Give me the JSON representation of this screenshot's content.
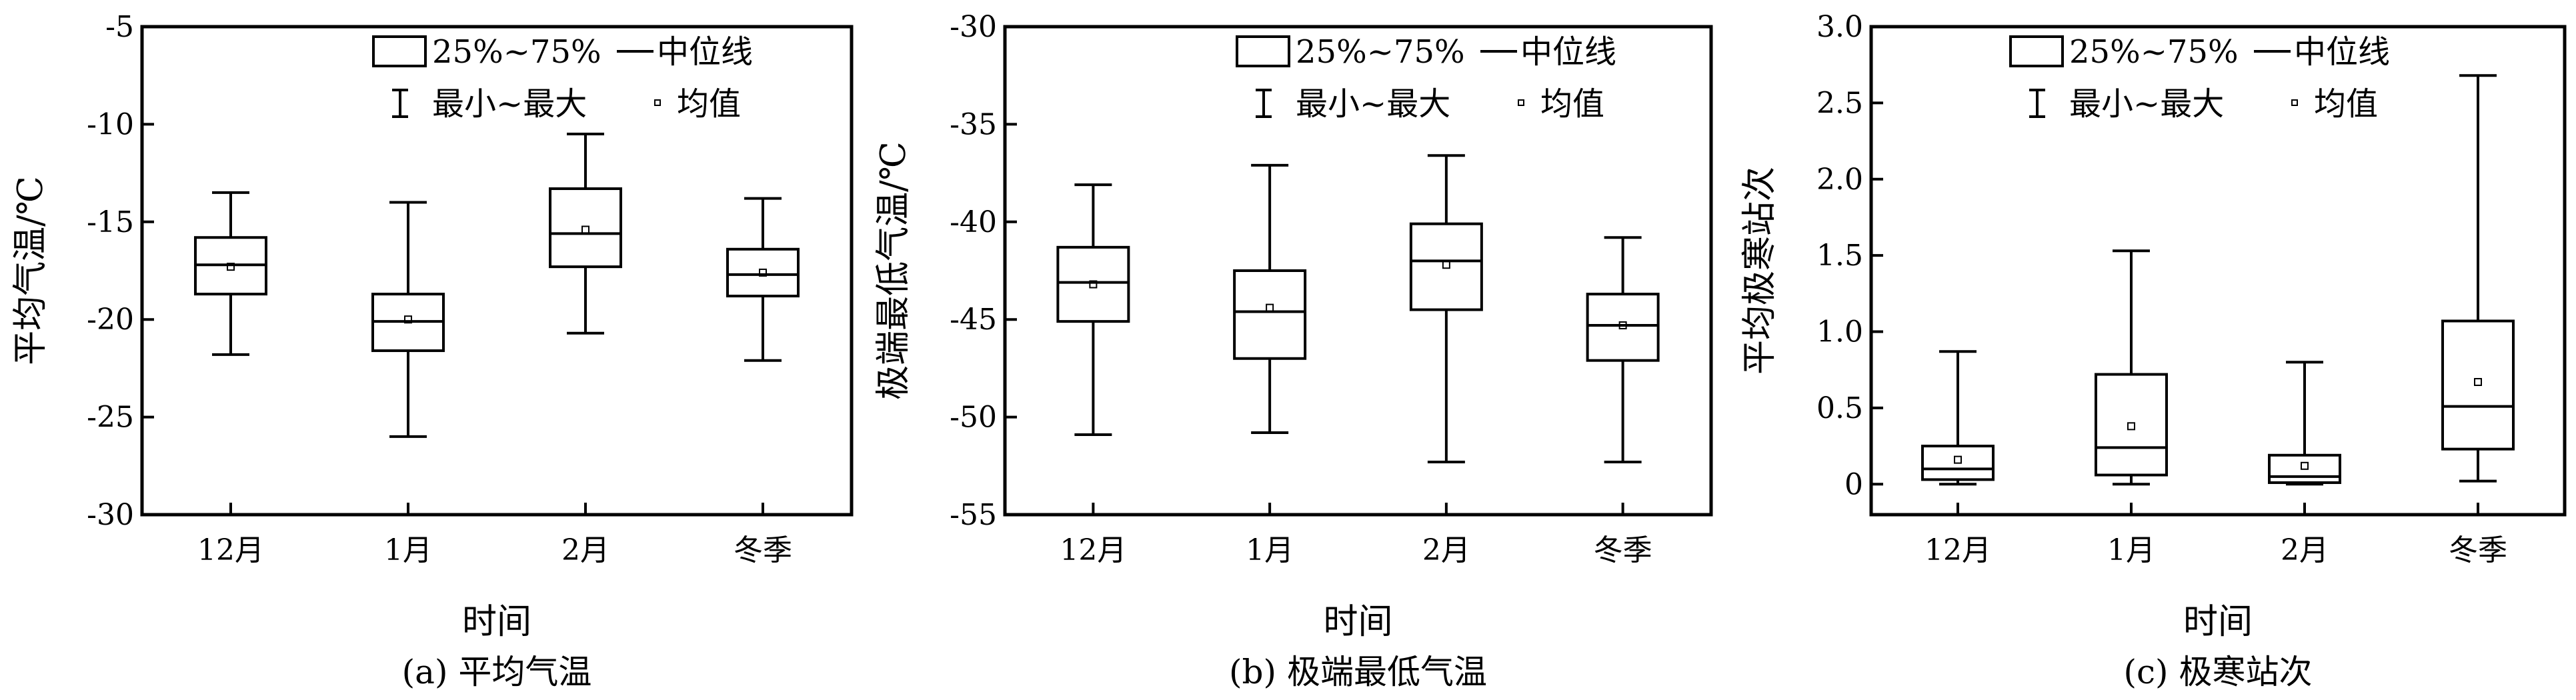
{
  "legend": {
    "box_label": "25%~75%",
    "median_label": "中位线",
    "whisker_label": "最小~最大",
    "mean_label": "均值"
  },
  "chart_data": [
    {
      "type": "box",
      "caption": "(a) 平均气温",
      "xlabel": "时间",
      "ylabel": "平均气温/℃",
      "categories": [
        "12月",
        "1月",
        "2月",
        "冬季"
      ],
      "ylim": [
        -30,
        -5
      ],
      "yticks": [
        -5,
        -10,
        -15,
        -20,
        -25,
        -30
      ],
      "ytick_labels": [
        "-5",
        "-10",
        "-15",
        "-20",
        "-25",
        "-30"
      ],
      "boxes": [
        {
          "min": -21.8,
          "q1": -18.7,
          "median": -17.2,
          "q3": -15.8,
          "max": -13.5,
          "mean": -17.3
        },
        {
          "min": -26.0,
          "q1": -21.6,
          "median": -20.1,
          "q3": -18.7,
          "max": -14.0,
          "mean": -20.0
        },
        {
          "min": -20.7,
          "q1": -17.3,
          "median": -15.6,
          "q3": -13.3,
          "max": -10.5,
          "mean": -15.4
        },
        {
          "min": -22.1,
          "q1": -18.8,
          "median": -17.7,
          "q3": -16.4,
          "max": -13.8,
          "mean": -17.6
        }
      ]
    },
    {
      "type": "box",
      "caption": "(b) 极端最低气温",
      "xlabel": "时间",
      "ylabel": "极端最低气温/℃",
      "categories": [
        "12月",
        "1月",
        "2月",
        "冬季"
      ],
      "ylim": [
        -55,
        -30
      ],
      "yticks": [
        -30,
        -35,
        -40,
        -45,
        -50,
        -55
      ],
      "ytick_labels": [
        "-30",
        "-35",
        "-40",
        "-45",
        "-50",
        "-55"
      ],
      "boxes": [
        {
          "min": -50.9,
          "q1": -45.1,
          "median": -43.1,
          "q3": -41.3,
          "max": -38.1,
          "mean": -43.2
        },
        {
          "min": -50.8,
          "q1": -47.0,
          "median": -44.6,
          "q3": -42.5,
          "max": -37.1,
          "mean": -44.4
        },
        {
          "min": -52.3,
          "q1": -44.5,
          "median": -42.0,
          "q3": -40.1,
          "max": -36.6,
          "mean": -42.2
        },
        {
          "min": -52.3,
          "q1": -47.1,
          "median": -45.3,
          "q3": -43.7,
          "max": -40.8,
          "mean": -45.3
        }
      ]
    },
    {
      "type": "box",
      "caption": "(c) 极寒站次",
      "xlabel": "时间",
      "ylabel": "平均极寒站次",
      "categories": [
        "12月",
        "1月",
        "2月",
        "冬季"
      ],
      "ylim": [
        -0.2,
        3.0
      ],
      "yticks": [
        0,
        0.5,
        1.0,
        1.5,
        2.0,
        2.5,
        3.0
      ],
      "ytick_labels": [
        "0",
        "0.5",
        "1.0",
        "1.5",
        "2.0",
        "2.5",
        "3.0"
      ],
      "boxes": [
        {
          "min": 0.0,
          "q1": 0.03,
          "median": 0.1,
          "q3": 0.25,
          "max": 0.87,
          "mean": 0.16
        },
        {
          "min": 0.0,
          "q1": 0.06,
          "median": 0.24,
          "q3": 0.72,
          "max": 1.53,
          "mean": 0.38
        },
        {
          "min": 0.0,
          "q1": 0.01,
          "median": 0.05,
          "q3": 0.19,
          "max": 0.8,
          "mean": 0.12
        },
        {
          "min": 0.02,
          "q1": 0.23,
          "median": 0.51,
          "q3": 1.07,
          "max": 2.68,
          "mean": 0.67
        }
      ]
    }
  ]
}
